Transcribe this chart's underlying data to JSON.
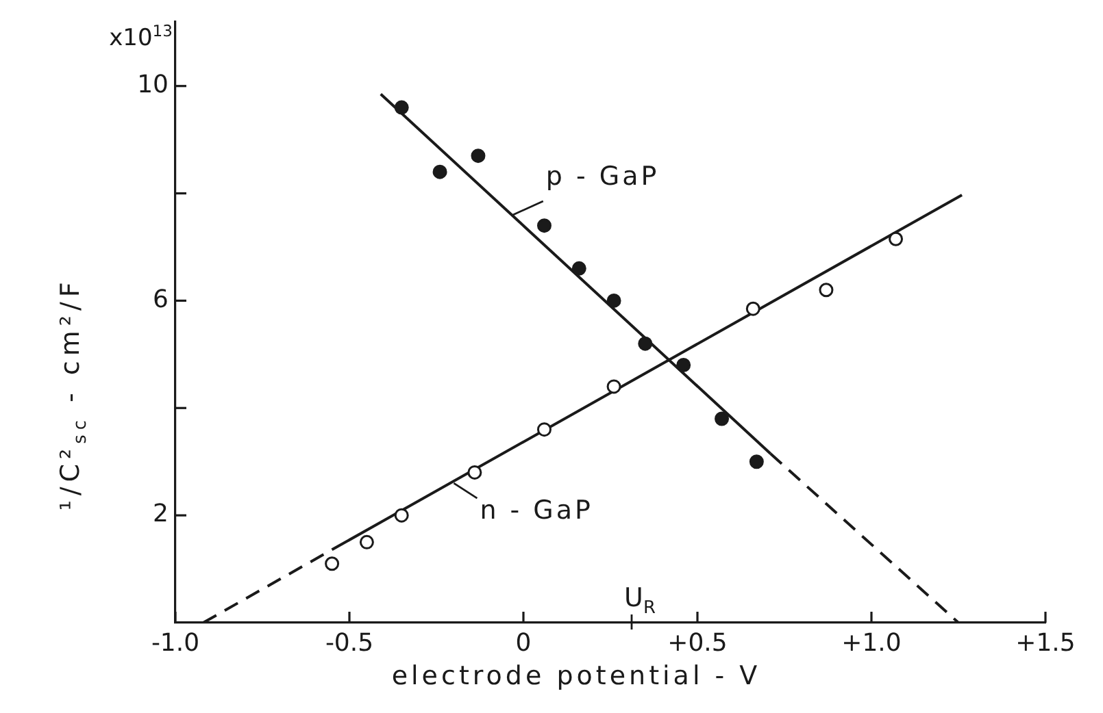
{
  "chart_data": {
    "type": "scatter",
    "xlabel": "electrode potential - V",
    "ylabel": "¹/C²$_{sc}$ - cm²/F",
    "annotations": [
      "x10$^{13}$",
      {
        "text": "p - GaP",
        "x": -0.03,
        "y": 7.6
      },
      {
        "text": "n - GaP",
        "x": -0.2,
        "y": 2.6
      },
      "U$_{R}$"
    ],
    "xlim": [
      -1.0,
      1.5
    ],
    "xticks": [
      {
        "value": -1,
        "label": "-1.0"
      },
      -0.5,
      0,
      {
        "value": 0.5,
        "label": "+0.5"
      },
      {
        "value": 1,
        "label": "+1.0"
      },
      {
        "value": 1.5,
        "label": "+1.5"
      }
    ],
    "ylim": [
      0,
      11.2
    ],
    "yticks": [
      2,
      {
        "value": 4,
        "label": null
      },
      6,
      {
        "value": 8,
        "label": null
      },
      10
    ],
    "marker": "circle",
    "series": [
      {
        "color": "#1a1a1a",
        "x": [
          -0.35,
          -0.24,
          -0.13,
          0.06,
          0.16,
          0.26,
          0.35,
          0.46,
          0.57,
          0.67
        ],
        "values": [
          9.6,
          8.4,
          8.7,
          7.4,
          6.6,
          6.0,
          5.2,
          4.8,
          3.8,
          3.0
        ]
      },
      {
        "color": "#1a1a1a",
        "x": [
          -0.55,
          -0.45,
          -0.35,
          -0.14,
          0.06,
          0.26,
          0.66,
          0.87,
          1.07
        ],
        "values": [
          1.1,
          1.5,
          2.0,
          2.8,
          3.6,
          4.4,
          5.85,
          6.2,
          7.15
        ]
      },
      {
        "type": "line",
        "color": "#1a1a1a",
        "marker": "none",
        "line_style": "solid",
        "x": [
          -0.41,
          0.71
        ],
        "values": [
          9.85,
          3.15
        ]
      },
      {
        "type": "line",
        "color": "#1a1a1a",
        "marker": "none",
        "line_style": "dashed",
        "x": [
          0.71,
          1.25
        ],
        "values": [
          3.15,
          0
        ]
      },
      {
        "type": "line",
        "color": "#1a1a1a",
        "marker": "none",
        "line_style": "dashed",
        "x": [
          -0.92,
          -0.55
        ],
        "values": [
          0,
          1.36
        ]
      },
      {
        "type": "line",
        "color": "#1a1a1a",
        "marker": "none",
        "line_style": "solid",
        "x": [
          -0.55,
          1.26
        ],
        "values": [
          1.36,
          7.97
        ]
      }
    ]
  }
}
